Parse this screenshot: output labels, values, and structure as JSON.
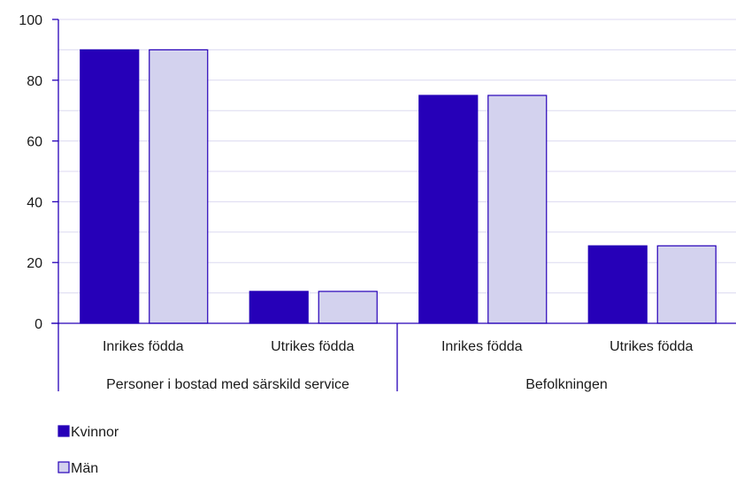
{
  "chart_data": {
    "type": "bar",
    "groups": [
      {
        "label": "Personer i bostad med särskild service",
        "categories": [
          "Inrikes födda",
          "Utrikes födda"
        ]
      },
      {
        "label": "Befolkningen",
        "categories": [
          "Inrikes födda",
          "Utrikes födda"
        ]
      }
    ],
    "categories": [
      "Inrikes födda",
      "Utrikes födda",
      "Inrikes födda",
      "Utrikes födda"
    ],
    "series": [
      {
        "name": "Kvinnor",
        "values": [
          90,
          10.5,
          75,
          25.5
        ],
        "color": "#2600b8"
      },
      {
        "name": "Män",
        "values": [
          90,
          10.5,
          75,
          25.5
        ],
        "color": "#d3d2ee"
      }
    ],
    "yticks": [
      0,
      20,
      40,
      60,
      80,
      100
    ],
    "ylim": [
      0,
      100
    ],
    "grid": true,
    "legend_position": "bottom-left",
    "colors": {
      "axis": "#2600b8",
      "grid": "#dcdaf0",
      "bar_edge": "#2600b8"
    }
  }
}
